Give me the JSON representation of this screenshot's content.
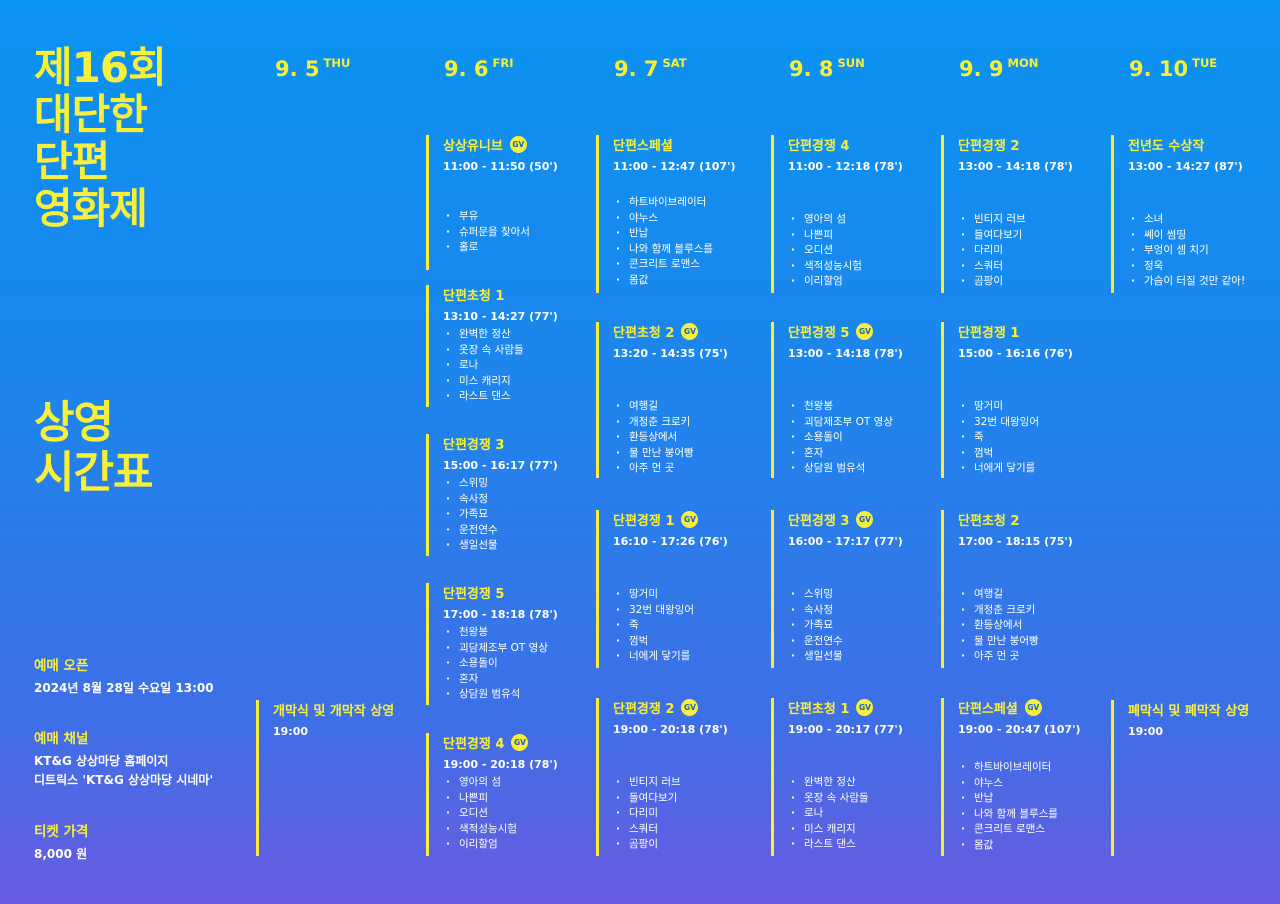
{
  "title": {
    "line1": "제16회",
    "line2": "대단한",
    "line3": "단편",
    "line4": "영화제"
  },
  "schedule_title": {
    "line1": "상영",
    "line2": "시간표"
  },
  "info": {
    "open_label": "예매 오픈",
    "open_value": "2024년 8월 28일 수요일 13:00",
    "channel_label": "예매 채널",
    "channel_line1": "KT&G 상상마당 홈페이지",
    "channel_line2": "디트릭스 'KT&G 상상마당 시네마'",
    "price_label": "티켓 가격",
    "price_value": "8,000 원"
  },
  "days": [
    {
      "date": "9. 5",
      "dow": "THU"
    },
    {
      "date": "9. 6",
      "dow": "FRI"
    },
    {
      "date": "9. 7",
      "dow": "SAT"
    },
    {
      "date": "9. 8",
      "dow": "SUN"
    },
    {
      "date": "9. 9",
      "dow": "MON"
    },
    {
      "date": "9. 10",
      "dow": "TUE"
    }
  ],
  "gv_label": "GV",
  "columns": [
    {
      "blocks": [
        {
          "title": "개막식 및 개막작 상영",
          "time": "19:00",
          "films": []
        }
      ]
    },
    {
      "blocks": [
        {
          "title": "상상유니브",
          "gv": true,
          "time": "11:00 - 11:50 (50')",
          "films": [
            "부유",
            "슈퍼문을 찾아서",
            "홀로"
          ]
        },
        {
          "title": "단편초청 1",
          "time": "13:10 - 14:27 (77')",
          "films": [
            "완벽한 정산",
            "옷장 속 사람들",
            "로나",
            "미스 캐리지",
            "라스트 댄스"
          ]
        },
        {
          "title": "단편경쟁 3",
          "time": "15:00 - 16:17 (77')",
          "films": [
            "스위밍",
            "속사정",
            "가족묘",
            "운전연수",
            "생일선물"
          ]
        },
        {
          "title": "단편경쟁 5",
          "time": "17:00 - 18:18 (78')",
          "films": [
            "천왕봉",
            "괴담제조부 OT 영상",
            "소용돌이",
            "혼자",
            "상담원 범유석"
          ]
        },
        {
          "title": "단편경쟁 4",
          "gv": true,
          "time": "19:00 - 20:18 (78')",
          "films": [
            "영아의 섬",
            "나쁜피",
            "오디션",
            "색적성능시험",
            "이리할엄"
          ]
        }
      ]
    },
    {
      "blocks": [
        {
          "title": "단편스페셜",
          "time": "11:00 - 12:47 (107')",
          "films": [
            "하트바이브레이터",
            "야누스",
            "반납",
            "나와 함께 블루스를",
            "콘크리트 로맨스",
            "몸값"
          ]
        },
        {
          "title": "단편초청 2",
          "gv": true,
          "time": "13:20 - 14:35 (75')",
          "films": [
            "여행길",
            "개청춘 크로키",
            "환등상에서",
            "물 만난 붕어빵",
            "아주 먼 곳"
          ]
        },
        {
          "title": "단편경쟁 1",
          "gv": true,
          "time": "16:10 - 17:26 (76')",
          "films": [
            "땅거미",
            "32번 대왕잉어",
            "죽",
            "껌벅",
            "너에게 닿기를"
          ]
        },
        {
          "title": "단편경쟁 2",
          "gv": true,
          "time": "19:00 - 20:18 (78')",
          "films": [
            "빈티지 러브",
            "들여다보기",
            "다리미",
            "스쿼터",
            "곰팡이"
          ]
        }
      ]
    },
    {
      "blocks": [
        {
          "title": "단편경쟁 4",
          "time": "11:00 - 12:18 (78')",
          "films": [
            "영아의 섬",
            "나쁜피",
            "오디션",
            "색적성능시험",
            "이리할엄"
          ]
        },
        {
          "title": "단편경쟁 5",
          "gv": true,
          "time": "13:00 - 14:18 (78')",
          "films": [
            "천왕봉",
            "괴담제조부 OT 영상",
            "소용돌이",
            "혼자",
            "상담원 범유석"
          ]
        },
        {
          "title": "단편경쟁 3",
          "gv": true,
          "time": "16:00 - 17:17 (77')",
          "films": [
            "스위밍",
            "속사정",
            "가족묘",
            "운전연수",
            "생일선물"
          ]
        },
        {
          "title": "단편초청 1",
          "gv": true,
          "time": "19:00 - 20:17 (77')",
          "films": [
            "완벽한 정산",
            "옷장 속 사람들",
            "로나",
            "미스 캐리지",
            "라스트 댄스"
          ]
        }
      ]
    },
    {
      "blocks": [
        {
          "title": "단편경쟁 2",
          "time": "13:00 - 14:18 (78')",
          "films": [
            "빈티지 러브",
            "들여다보기",
            "다리미",
            "스쿼터",
            "곰팡이"
          ]
        },
        {
          "title": "단편경쟁 1",
          "time": "15:00 - 16:16 (76')",
          "films": [
            "땅거미",
            "32번 대왕잉어",
            "죽",
            "껌벅",
            "너에게 닿기를"
          ]
        },
        {
          "title": "단편초청 2",
          "time": "17:00 - 18:15 (75')",
          "films": [
            "여행길",
            "개청춘 크로키",
            "환등상에서",
            "물 만난 붕어빵",
            "아주 먼 곳"
          ]
        },
        {
          "title": "단편스페셜",
          "gv": true,
          "time": "19:00 - 20:47 (107')",
          "films": [
            "하트바이브레이터",
            "야누스",
            "반납",
            "나와 함께 블루스를",
            "콘크리트 로맨스",
            "몸값"
          ]
        }
      ]
    },
    {
      "blocks": [
        {
          "title": "전년도 수상작",
          "time": "13:00 - 14:27 (87')",
          "films": [
            "소녀",
            "쎄이 썸띵",
            "부엉이 셈 치기",
            "정욱",
            "가슴이 터질 것만 같아!"
          ]
        },
        {
          "title": "폐막식 및 폐막작 상영",
          "time": "19:00",
          "films": []
        }
      ]
    }
  ]
}
